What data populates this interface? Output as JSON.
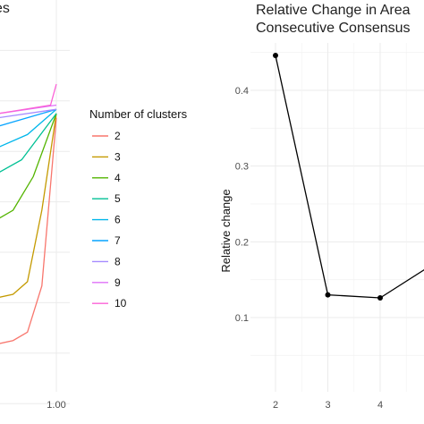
{
  "chart_data": [
    {
      "type": "line",
      "panel": "left",
      "title": "es",
      "xlabel": "",
      "ylabel": "",
      "x_ticks": [
        "1.00"
      ],
      "grid": true,
      "legend": {
        "title": "Number of clusters",
        "placement": "right",
        "entries": [
          "2",
          "3",
          "4",
          "5",
          "6",
          "7",
          "8",
          "9",
          "10"
        ]
      },
      "series": [
        {
          "name": "2",
          "color": "#F8766D",
          "x": [
            0.0,
            0.05,
            0.2,
            0.4,
            0.6,
            0.75,
            0.85,
            0.9,
            0.95,
            1.0
          ],
          "y": [
            0.155,
            0.155,
            0.158,
            0.162,
            0.168,
            0.175,
            0.19,
            0.21,
            0.32,
            0.72
          ]
        },
        {
          "name": "3",
          "color": "#C49A00",
          "x": [
            0.0,
            0.2,
            0.4,
            0.6,
            0.75,
            0.85,
            0.9,
            0.95,
            1.0
          ],
          "y": [
            0.27,
            0.273,
            0.275,
            0.28,
            0.285,
            0.3,
            0.33,
            0.5,
            0.73
          ]
        },
        {
          "name": "4",
          "color": "#53B400",
          "x": [
            0.0,
            0.2,
            0.4,
            0.6,
            0.75,
            0.85,
            0.92,
            1.0
          ],
          "y": [
            0.36,
            0.375,
            0.39,
            0.42,
            0.46,
            0.5,
            0.58,
            0.73
          ]
        },
        {
          "name": "5",
          "color": "#00C094",
          "x": [
            0.0,
            0.2,
            0.4,
            0.6,
            0.75,
            0.88,
            1.0
          ],
          "y": [
            0.46,
            0.48,
            0.5,
            0.53,
            0.57,
            0.62,
            0.73
          ]
        },
        {
          "name": "6",
          "color": "#00B6EB",
          "x": [
            0.0,
            0.2,
            0.4,
            0.6,
            0.8,
            0.9,
            1.0
          ],
          "y": [
            0.55,
            0.57,
            0.59,
            0.62,
            0.65,
            0.68,
            0.74
          ]
        },
        {
          "name": "7",
          "color": "#06A4FF",
          "x": [
            0.0,
            0.2,
            0.4,
            0.6,
            0.8,
            1.0
          ],
          "y": [
            0.6,
            0.62,
            0.64,
            0.67,
            0.7,
            0.74
          ]
        },
        {
          "name": "8",
          "color": "#A58AFF",
          "x": [
            0.0,
            0.2,
            0.4,
            0.6,
            0.8,
            1.0
          ],
          "y": [
            0.64,
            0.66,
            0.68,
            0.7,
            0.72,
            0.74
          ]
        },
        {
          "name": "9",
          "color": "#DF70F8",
          "x": [
            0.0,
            0.2,
            0.4,
            0.6,
            0.8,
            1.0
          ],
          "y": [
            0.66,
            0.68,
            0.7,
            0.71,
            0.73,
            0.75
          ]
        },
        {
          "name": "10",
          "color": "#FB61D7",
          "x": [
            0.0,
            0.2,
            0.4,
            0.6,
            0.8,
            0.98,
            1.0
          ],
          "y": [
            0.68,
            0.69,
            0.7,
            0.72,
            0.73,
            0.75,
            0.8
          ]
        }
      ]
    },
    {
      "type": "line",
      "panel": "right",
      "title": "Relative Change in Area",
      "subtitle": "Consecutive Consensus",
      "xlabel": "",
      "ylabel": "Relative change",
      "x_ticks": [
        "2",
        "3",
        "4"
      ],
      "y_ticks": [
        "0.1",
        "0.2",
        "0.3",
        "0.4"
      ],
      "ylim": [
        0.05,
        0.48
      ],
      "grid": true,
      "color": "#000000",
      "x": [
        2,
        3,
        4,
        5
      ],
      "y": [
        0.446,
        0.13,
        0.126,
        0.17
      ]
    }
  ]
}
